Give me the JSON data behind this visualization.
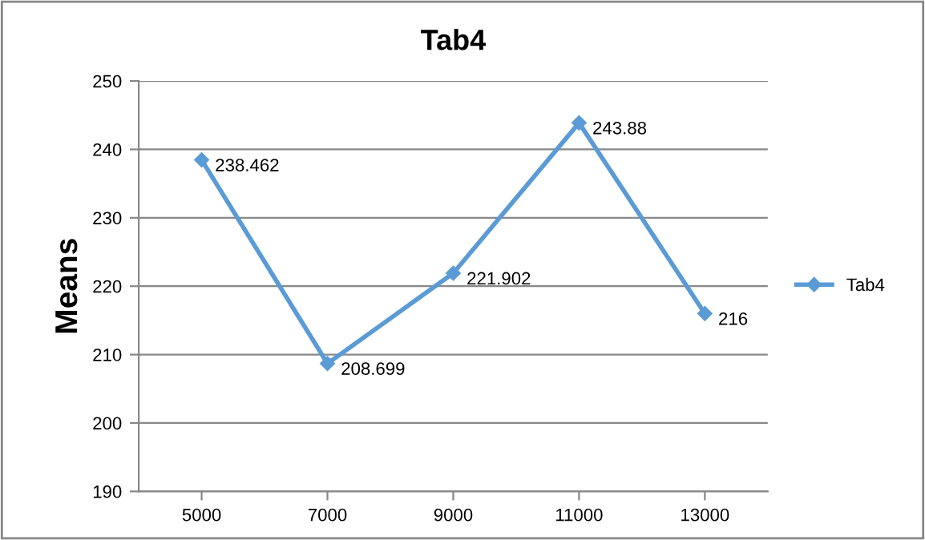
{
  "chart_data": {
    "type": "line",
    "title": "Tab4",
    "ylabel": "Means",
    "categories": [
      "5000",
      "7000",
      "9000",
      "11000",
      "13000"
    ],
    "series": [
      {
        "name": "Tab4",
        "color": "#5b9bd5",
        "values": [
          238.462,
          208.699,
          221.902,
          243.88,
          216
        ]
      }
    ],
    "ylim": [
      190,
      250
    ],
    "yticks": [
      190,
      200,
      210,
      220,
      230,
      240,
      250
    ],
    "grid": "y",
    "legend": "right",
    "marker": "diamond",
    "line_style": "solid",
    "data_labels": true
  }
}
